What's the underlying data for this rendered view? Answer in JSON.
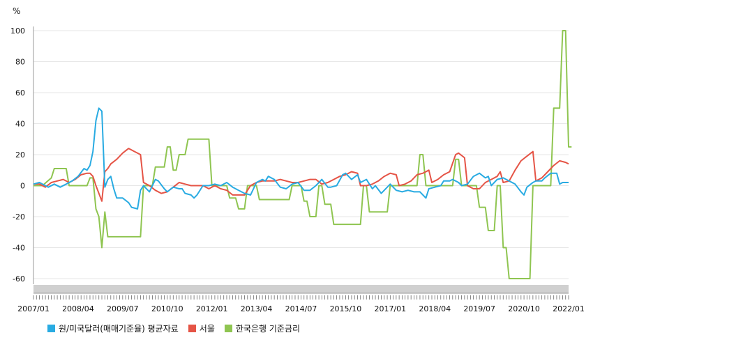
{
  "chart_data": {
    "type": "line",
    "y_unit": "%",
    "ylim": [
      -60,
      100
    ],
    "y_ticks": [
      100,
      80,
      60,
      40,
      20,
      0,
      -20,
      -40,
      -60
    ],
    "x_range": [
      "2007/01",
      "2022/01"
    ],
    "x_tick_labels": [
      "2007/01",
      "2008/04",
      "2009/07",
      "2010/10",
      "2012/01",
      "2013/04",
      "2014/07",
      "2015/10",
      "2017/01",
      "2018/04",
      "2019/07",
      "2020/10",
      "2022/01"
    ],
    "grid": "horizontal",
    "legend_position": "bottom-left",
    "series": [
      {
        "name": "원/미국달러(매매기준율) 평균자료",
        "color": "#29abe2",
        "points": [
          [
            "2007/01",
            1
          ],
          [
            "2007/03",
            2
          ],
          [
            "2007/05",
            0
          ],
          [
            "2007/06",
            -1
          ],
          [
            "2007/08",
            1
          ],
          [
            "2007/10",
            -1
          ],
          [
            "2007/12",
            1
          ],
          [
            "2008/02",
            3
          ],
          [
            "2008/04",
            6
          ],
          [
            "2008/06",
            11
          ],
          [
            "2008/07",
            10
          ],
          [
            "2008/08",
            13
          ],
          [
            "2008/09",
            22
          ],
          [
            "2008/10",
            42
          ],
          [
            "2008/11",
            50
          ],
          [
            "2008/12",
            48
          ],
          [
            "2009/01",
            -1
          ],
          [
            "2009/02",
            4
          ],
          [
            "2009/03",
            6
          ],
          [
            "2009/04",
            -2
          ],
          [
            "2009/05",
            -8
          ],
          [
            "2009/07",
            -8
          ],
          [
            "2009/09",
            -11
          ],
          [
            "2009/10",
            -14
          ],
          [
            "2009/12",
            -15
          ],
          [
            "2010/01",
            -3
          ],
          [
            "2010/02",
            0
          ],
          [
            "2010/04",
            -4
          ],
          [
            "2010/06",
            4
          ],
          [
            "2010/07",
            3
          ],
          [
            "2010/09",
            -2
          ],
          [
            "2010/10",
            -4
          ],
          [
            "2010/12",
            -1
          ],
          [
            "2011/02",
            -2
          ],
          [
            "2011/03",
            -2
          ],
          [
            "2011/04",
            -5
          ],
          [
            "2011/06",
            -6
          ],
          [
            "2011/07",
            -8
          ],
          [
            "2011/08",
            -6
          ],
          [
            "2011/10",
            0
          ],
          [
            "2011/12",
            0
          ],
          [
            "2012/02",
            1
          ],
          [
            "2012/04",
            0
          ],
          [
            "2012/06",
            2
          ],
          [
            "2012/08",
            -1
          ],
          [
            "2012/10",
            -3
          ],
          [
            "2012/12",
            -5
          ],
          [
            "2013/02",
            -6
          ],
          [
            "2013/04",
            2
          ],
          [
            "2013/06",
            4
          ],
          [
            "2013/07",
            3
          ],
          [
            "2013/08",
            6
          ],
          [
            "2013/10",
            4
          ],
          [
            "2013/12",
            -1
          ],
          [
            "2014/02",
            -2
          ],
          [
            "2014/04",
            1
          ],
          [
            "2014/06",
            2
          ],
          [
            "2014/08",
            -3
          ],
          [
            "2014/10",
            -3
          ],
          [
            "2014/12",
            0
          ],
          [
            "2015/02",
            4
          ],
          [
            "2015/04",
            -1
          ],
          [
            "2015/05",
            -1
          ],
          [
            "2015/07",
            0
          ],
          [
            "2015/09",
            7
          ],
          [
            "2015/10",
            8
          ],
          [
            "2015/12",
            4
          ],
          [
            "2016/02",
            7
          ],
          [
            "2016/03",
            2
          ],
          [
            "2016/05",
            4
          ],
          [
            "2016/07",
            -2
          ],
          [
            "2016/08",
            0
          ],
          [
            "2016/10",
            -5
          ],
          [
            "2016/12",
            -1
          ],
          [
            "2017/01",
            1
          ],
          [
            "2017/03",
            -3
          ],
          [
            "2017/05",
            -4
          ],
          [
            "2017/07",
            -3
          ],
          [
            "2017/09",
            -4
          ],
          [
            "2017/11",
            -4
          ],
          [
            "2018/01",
            -8
          ],
          [
            "2018/02",
            -2
          ],
          [
            "2018/04",
            -1
          ],
          [
            "2018/06",
            0
          ],
          [
            "2018/07",
            3
          ],
          [
            "2018/09",
            3
          ],
          [
            "2018/10",
            4
          ],
          [
            "2018/12",
            2
          ],
          [
            "2019/01",
            0
          ],
          [
            "2019/03",
            1
          ],
          [
            "2019/05",
            6
          ],
          [
            "2019/07",
            8
          ],
          [
            "2019/09",
            5
          ],
          [
            "2019/10",
            6
          ],
          [
            "2019/11",
            0
          ],
          [
            "2020/01",
            4
          ],
          [
            "2020/03",
            5
          ],
          [
            "2020/05",
            3
          ],
          [
            "2020/07",
            1
          ],
          [
            "2020/09",
            -4
          ],
          [
            "2020/10",
            -6
          ],
          [
            "2020/11",
            -1
          ],
          [
            "2021/01",
            2
          ],
          [
            "2021/02",
            3
          ],
          [
            "2021/04",
            3
          ],
          [
            "2021/05",
            5
          ],
          [
            "2021/07",
            8
          ],
          [
            "2021/09",
            8
          ],
          [
            "2021/10",
            1
          ],
          [
            "2021/11",
            2
          ],
          [
            "2022/01",
            2
          ]
        ]
      },
      {
        "name": "서울",
        "color": "#e55446",
        "points": [
          [
            "2007/01",
            1
          ],
          [
            "2007/03",
            1
          ],
          [
            "2007/05",
            -1
          ],
          [
            "2007/07",
            2
          ],
          [
            "2007/09",
            3
          ],
          [
            "2007/11",
            4
          ],
          [
            "2008/01",
            2
          ],
          [
            "2008/03",
            4
          ],
          [
            "2008/05",
            7
          ],
          [
            "2008/07",
            8
          ],
          [
            "2008/08",
            8
          ],
          [
            "2008/09",
            6
          ],
          [
            "2008/10",
            0
          ],
          [
            "2008/12",
            -10
          ],
          [
            "2009/01",
            9
          ],
          [
            "2009/02",
            11
          ],
          [
            "2009/03",
            14
          ],
          [
            "2009/05",
            17
          ],
          [
            "2009/07",
            21
          ],
          [
            "2009/09",
            24
          ],
          [
            "2009/11",
            22
          ],
          [
            "2010/01",
            20
          ],
          [
            "2010/02",
            2
          ],
          [
            "2010/04",
            0
          ],
          [
            "2010/06",
            -3
          ],
          [
            "2010/08",
            -5
          ],
          [
            "2010/10",
            -4
          ],
          [
            "2010/12",
            -1
          ],
          [
            "2011/02",
            2
          ],
          [
            "2011/04",
            1
          ],
          [
            "2011/06",
            0
          ],
          [
            "2011/08",
            0
          ],
          [
            "2011/10",
            0
          ],
          [
            "2011/12",
            -2
          ],
          [
            "2012/02",
            0
          ],
          [
            "2012/04",
            -2
          ],
          [
            "2012/06",
            -3
          ],
          [
            "2012/08",
            -6
          ],
          [
            "2012/10",
            -6
          ],
          [
            "2012/12",
            -6
          ],
          [
            "2013/02",
            0
          ],
          [
            "2013/04",
            2
          ],
          [
            "2013/06",
            3
          ],
          [
            "2013/08",
            3
          ],
          [
            "2013/10",
            3
          ],
          [
            "2013/12",
            4
          ],
          [
            "2014/02",
            3
          ],
          [
            "2014/04",
            2
          ],
          [
            "2014/06",
            2
          ],
          [
            "2014/08",
            3
          ],
          [
            "2014/10",
            4
          ],
          [
            "2014/12",
            4
          ],
          [
            "2015/02",
            1
          ],
          [
            "2015/04",
            2
          ],
          [
            "2015/06",
            4
          ],
          [
            "2015/08",
            6
          ],
          [
            "2015/10",
            7
          ],
          [
            "2015/12",
            9
          ],
          [
            "2016/02",
            8
          ],
          [
            "2016/03",
            0
          ],
          [
            "2016/05",
            0
          ],
          [
            "2016/07",
            1
          ],
          [
            "2016/09",
            3
          ],
          [
            "2016/11",
            6
          ],
          [
            "2017/01",
            8
          ],
          [
            "2017/03",
            7
          ],
          [
            "2017/04",
            0
          ],
          [
            "2017/06",
            1
          ],
          [
            "2017/08",
            3
          ],
          [
            "2017/10",
            7
          ],
          [
            "2017/12",
            8
          ],
          [
            "2018/02",
            10
          ],
          [
            "2018/03",
            2
          ],
          [
            "2018/05",
            4
          ],
          [
            "2018/07",
            7
          ],
          [
            "2018/09",
            9
          ],
          [
            "2018/11",
            20
          ],
          [
            "2018/12",
            21
          ],
          [
            "2019/02",
            18
          ],
          [
            "2019/03",
            0
          ],
          [
            "2019/05",
            -2
          ],
          [
            "2019/07",
            -2
          ],
          [
            "2019/09",
            2
          ],
          [
            "2019/11",
            4
          ],
          [
            "2020/01",
            6
          ],
          [
            "2020/02",
            9
          ],
          [
            "2020/03",
            2
          ],
          [
            "2020/05",
            3
          ],
          [
            "2020/07",
            10
          ],
          [
            "2020/09",
            16
          ],
          [
            "2020/11",
            19
          ],
          [
            "2021/01",
            22
          ],
          [
            "2021/02",
            3
          ],
          [
            "2021/04",
            5
          ],
          [
            "2021/06",
            9
          ],
          [
            "2021/08",
            13
          ],
          [
            "2021/10",
            16
          ],
          [
            "2021/12",
            15
          ],
          [
            "2022/01",
            14
          ]
        ]
      },
      {
        "name": "한국은행 기준금리",
        "color": "#8fc551",
        "points": [
          [
            "2007/01",
            0
          ],
          [
            "2007/04",
            0
          ],
          [
            "2007/07",
            5
          ],
          [
            "2007/08",
            11
          ],
          [
            "2007/12",
            11
          ],
          [
            "2008/01",
            0
          ],
          [
            "2008/07",
            0
          ],
          [
            "2008/08",
            5
          ],
          [
            "2008/09",
            5
          ],
          [
            "2008/10",
            -15
          ],
          [
            "2008/11",
            -20
          ],
          [
            "2008/12",
            -40
          ],
          [
            "2009/01",
            -17
          ],
          [
            "2009/02",
            -33
          ],
          [
            "2010/01",
            -33
          ],
          [
            "2010/02",
            0
          ],
          [
            "2010/05",
            0
          ],
          [
            "2010/06",
            12
          ],
          [
            "2010/09",
            12
          ],
          [
            "2010/10",
            25
          ],
          [
            "2010/11",
            25
          ],
          [
            "2010/12",
            10
          ],
          [
            "2011/01",
            10
          ],
          [
            "2011/02",
            20
          ],
          [
            "2011/04",
            20
          ],
          [
            "2011/05",
            30
          ],
          [
            "2011/12",
            30
          ],
          [
            "2012/01",
            0
          ],
          [
            "2012/06",
            0
          ],
          [
            "2012/07",
            -8
          ],
          [
            "2012/09",
            -8
          ],
          [
            "2012/10",
            -15
          ],
          [
            "2012/12",
            -15
          ],
          [
            "2013/01",
            0
          ],
          [
            "2013/04",
            0
          ],
          [
            "2013/05",
            -9
          ],
          [
            "2014/03",
            -9
          ],
          [
            "2014/04",
            0
          ],
          [
            "2014/07",
            0
          ],
          [
            "2014/08",
            -10
          ],
          [
            "2014/09",
            -10
          ],
          [
            "2014/10",
            -20
          ],
          [
            "2014/12",
            -20
          ],
          [
            "2015/01",
            0
          ],
          [
            "2015/02",
            0
          ],
          [
            "2015/03",
            -12
          ],
          [
            "2015/05",
            -12
          ],
          [
            "2015/06",
            -25
          ],
          [
            "2016/03",
            -25
          ],
          [
            "2016/04",
            0
          ],
          [
            "2016/05",
            0
          ],
          [
            "2016/06",
            -17
          ],
          [
            "2016/12",
            -17
          ],
          [
            "2017/01",
            0
          ],
          [
            "2017/10",
            0
          ],
          [
            "2017/11",
            20
          ],
          [
            "2017/12",
            20
          ],
          [
            "2018/01",
            0
          ],
          [
            "2018/10",
            0
          ],
          [
            "2018/11",
            17
          ],
          [
            "2018/12",
            17
          ],
          [
            "2019/01",
            0
          ],
          [
            "2019/06",
            0
          ],
          [
            "2019/07",
            -14
          ],
          [
            "2019/09",
            -14
          ],
          [
            "2019/10",
            -29
          ],
          [
            "2019/12",
            -29
          ],
          [
            "2020/01",
            0
          ],
          [
            "2020/02",
            0
          ],
          [
            "2020/03",
            -40
          ],
          [
            "2020/04",
            -40
          ],
          [
            "2020/05",
            -60
          ],
          [
            "2020/12",
            -60
          ],
          [
            "2021/01",
            0
          ],
          [
            "2021/07",
            0
          ],
          [
            "2021/08",
            50
          ],
          [
            "2021/10",
            50
          ],
          [
            "2021/11",
            100
          ],
          [
            "2021/12",
            100
          ],
          [
            "2022/01",
            25
          ],
          [
            "2022/02",
            25
          ]
        ]
      }
    ]
  }
}
